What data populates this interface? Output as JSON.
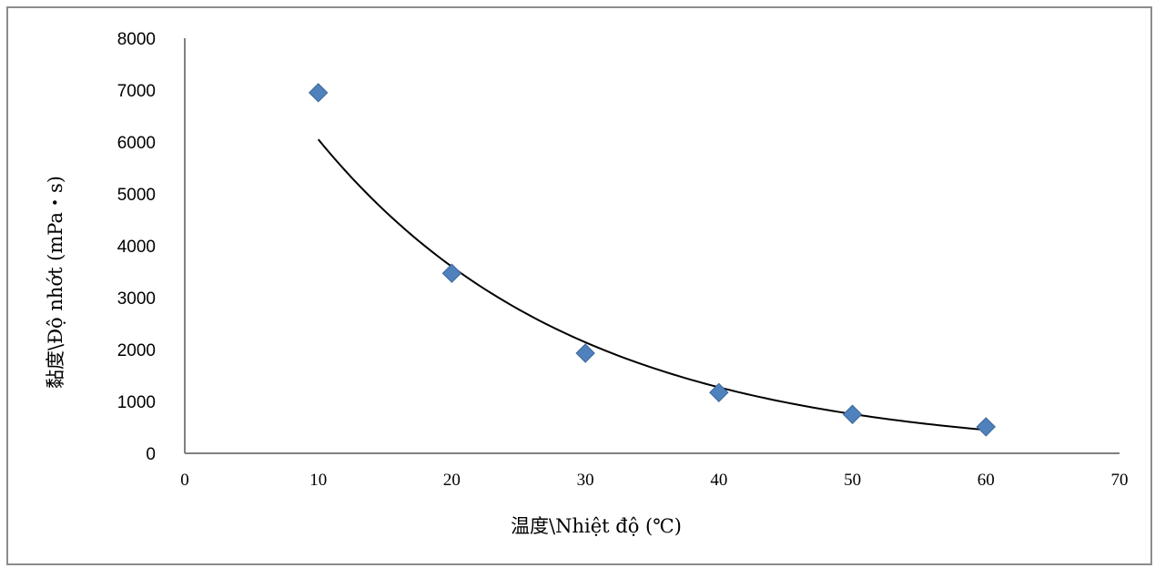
{
  "chart_data": {
    "type": "scatter",
    "title": "",
    "xlabel": "温度\\Nhiệt độ (℃)",
    "ylabel": "黏度\\Độ nhớt (mPa・s)",
    "xlim": [
      0,
      70
    ],
    "ylim": [
      0,
      8000
    ],
    "xticks": [
      0,
      10,
      20,
      30,
      40,
      50,
      60,
      70
    ],
    "yticks": [
      0,
      1000,
      2000,
      3000,
      4000,
      5000,
      6000,
      7000,
      8000
    ],
    "grid": false,
    "legend": "none",
    "series": [
      {
        "marker": "diamond",
        "color": "#4f81bd",
        "x": [
          10,
          20,
          30,
          40,
          50,
          60
        ],
        "y": [
          6950,
          3470,
          1930,
          1170,
          750,
          510
        ]
      }
    ],
    "trendline": {
      "type": "exponential",
      "color": "#000000",
      "x_range": [
        10,
        60
      ],
      "y_at_start": 6050,
      "y_at_end": 450
    }
  }
}
